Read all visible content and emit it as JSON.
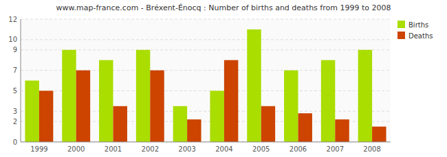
{
  "chart_data": {
    "type": "bar",
    "title": "www.map-france.com - Bréxent-Énocq : Number of births and deaths from 1999 to 2008",
    "categories": [
      "1999",
      "2000",
      "2001",
      "2002",
      "2003",
      "2004",
      "2005",
      "2006",
      "2007",
      "2008"
    ],
    "series": [
      {
        "name": "Births",
        "color": "#aadd00",
        "values": [
          6,
          9,
          8,
          9,
          3.5,
          5,
          11,
          7,
          8,
          9
        ]
      },
      {
        "name": "Deaths",
        "color": "#cc4400",
        "values": [
          5,
          7,
          3.5,
          7,
          2.2,
          8,
          3.5,
          2.8,
          2.2,
          1.5
        ]
      }
    ],
    "ylim": [
      0,
      12
    ],
    "yticks": [
      0,
      2,
      3,
      5,
      7,
      9,
      10,
      12
    ],
    "grid": true,
    "legend": "upper right"
  }
}
